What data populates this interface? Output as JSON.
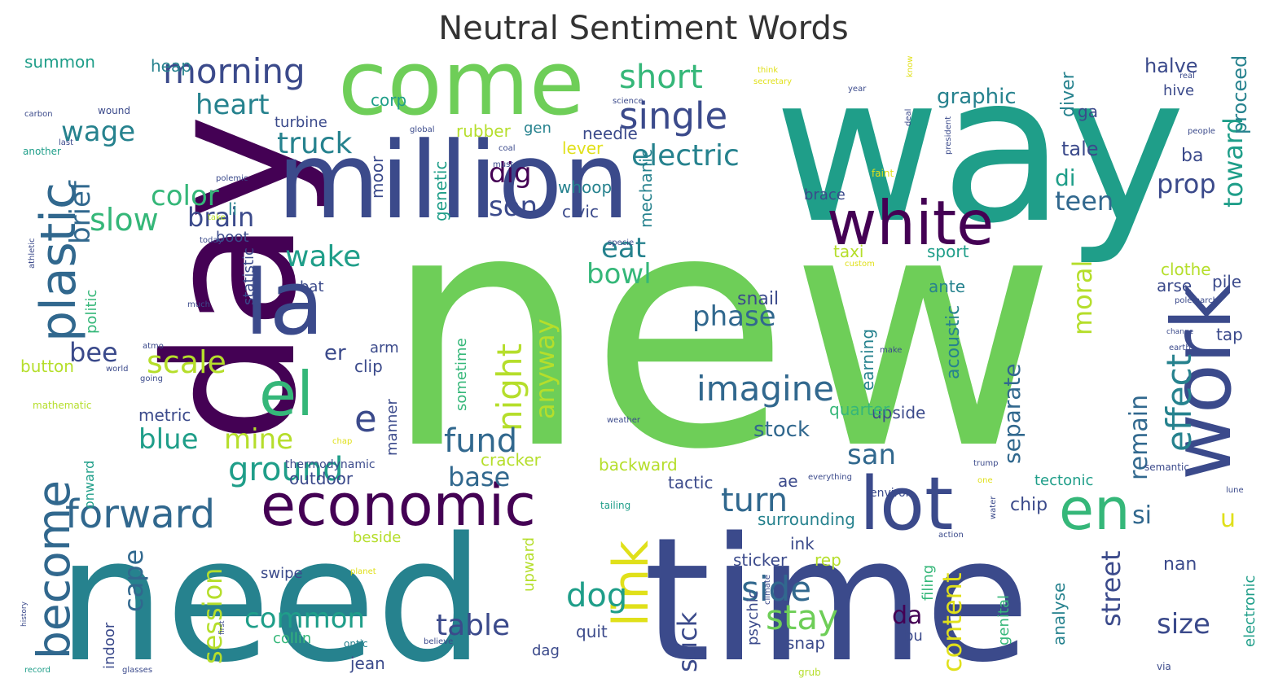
{
  "title": "Neutral Sentiment Words",
  "palette": {
    "dark_purple": "#440154",
    "indigo": "#3b4a8b",
    "blue": "#31688e",
    "teal": "#26828e",
    "sea_green": "#1f9e89",
    "green": "#35b779",
    "lime": "#6ece58",
    "light_lime": "#b5de2b",
    "yellow": "#e0e01a"
  },
  "words": [
    {
      "text": "new",
      "color": "lime",
      "rot": 0
    },
    {
      "text": "need",
      "color": "teal",
      "rot": 0
    },
    {
      "text": "time",
      "color": "indigo",
      "rot": 0
    },
    {
      "text": "way",
      "color": "sea_green",
      "rot": 0
    },
    {
      "text": "day",
      "color": "dark_purple",
      "rot": -90
    },
    {
      "text": "million",
      "color": "indigo",
      "rot": 0
    },
    {
      "text": "come",
      "color": "lime",
      "rot": 0
    },
    {
      "text": "work",
      "color": "indigo",
      "rot": -90
    },
    {
      "text": "la",
      "color": "indigo",
      "rot": 0
    },
    {
      "text": "white",
      "color": "dark_purple",
      "rot": 0
    },
    {
      "text": "economic",
      "color": "dark_purple",
      "rot": 0
    },
    {
      "text": "lot",
      "color": "indigo",
      "rot": 0
    },
    {
      "text": "plastic",
      "color": "blue",
      "rot": -90
    },
    {
      "text": "become",
      "color": "blue",
      "rot": -90
    },
    {
      "text": "link",
      "color": "yellow",
      "rot": -90
    },
    {
      "text": "el",
      "color": "green",
      "rot": 0
    },
    {
      "text": "en",
      "color": "green",
      "rot": 0
    },
    {
      "text": "single",
      "color": "indigo",
      "rot": 0
    },
    {
      "text": "imagine",
      "color": "blue",
      "rot": 0
    },
    {
      "text": "effect",
      "color": "teal",
      "rot": -90
    },
    {
      "text": "forward",
      "color": "blue",
      "rot": 0
    },
    {
      "text": "morning",
      "color": "indigo",
      "rot": 0
    },
    {
      "text": "short",
      "color": "green",
      "rot": 0
    },
    {
      "text": "night",
      "color": "light_lime",
      "rot": -90
    },
    {
      "text": "fund",
      "color": "blue",
      "rot": 0
    },
    {
      "text": "ground",
      "color": "sea_green",
      "rot": 0
    },
    {
      "text": "turn",
      "color": "blue",
      "rot": 0
    },
    {
      "text": "side",
      "color": "blue",
      "rot": 0
    },
    {
      "text": "stay",
      "color": "lime",
      "rot": 0
    },
    {
      "text": "electric",
      "color": "teal",
      "rot": 0
    },
    {
      "text": "e",
      "color": "indigo",
      "rot": 0
    },
    {
      "text": "scale",
      "color": "light_lime",
      "rot": 0
    },
    {
      "text": "slow",
      "color": "green",
      "rot": 0
    },
    {
      "text": "truck",
      "color": "teal",
      "rot": 0
    },
    {
      "text": "heart",
      "color": "teal",
      "rot": 0
    },
    {
      "text": "wage",
      "color": "teal",
      "rot": 0
    },
    {
      "text": "brief",
      "color": "blue",
      "rot": -90
    },
    {
      "text": "color",
      "color": "green",
      "rot": 0
    },
    {
      "text": "brain",
      "color": "indigo",
      "rot": 0
    },
    {
      "text": "wake",
      "color": "sea_green",
      "rot": 0
    },
    {
      "text": "eat",
      "color": "teal",
      "rot": 0
    },
    {
      "text": "bowl",
      "color": "green",
      "rot": 0
    },
    {
      "text": "dig",
      "color": "dark_purple",
      "rot": 0
    },
    {
      "text": "son",
      "color": "indigo",
      "rot": 0
    },
    {
      "text": "anyway",
      "color": "light_lime",
      "rot": -90
    },
    {
      "text": "phase",
      "color": "blue",
      "rot": 0
    },
    {
      "text": "moral",
      "color": "light_lime",
      "rot": -90
    },
    {
      "text": "toward",
      "color": "sea_green",
      "rot": -90
    },
    {
      "text": "teen",
      "color": "blue",
      "rot": 0
    },
    {
      "text": "prop",
      "color": "indigo",
      "rot": 0
    },
    {
      "text": "di",
      "color": "sea_green",
      "rot": 0
    },
    {
      "text": "u",
      "color": "yellow",
      "rot": 0
    },
    {
      "text": "si",
      "color": "blue",
      "rot": 0
    },
    {
      "text": "remain",
      "color": "blue",
      "rot": -90
    },
    {
      "text": "bee",
      "color": "indigo",
      "rot": 0
    },
    {
      "text": "blue",
      "color": "sea_green",
      "rot": 0
    },
    {
      "text": "mine",
      "color": "light_lime",
      "rot": 0
    },
    {
      "text": "base",
      "color": "blue",
      "rot": 0
    },
    {
      "text": "dog",
      "color": "sea_green",
      "rot": 0
    },
    {
      "text": "table",
      "color": "indigo",
      "rot": 0
    },
    {
      "text": "common",
      "color": "sea_green",
      "rot": 0
    },
    {
      "text": "session",
      "color": "light_lime",
      "rot": -90
    },
    {
      "text": "cape",
      "color": "blue",
      "rot": -90
    },
    {
      "text": "stick",
      "color": "indigo",
      "rot": -90
    },
    {
      "text": "da",
      "color": "dark_purple",
      "rot": 0
    },
    {
      "text": "content",
      "color": "yellow",
      "rot": -90
    },
    {
      "text": "street",
      "color": "indigo",
      "rot": -90
    },
    {
      "text": "size",
      "color": "indigo",
      "rot": 0
    },
    {
      "text": "san",
      "color": "blue",
      "rot": 0
    },
    {
      "text": "separate",
      "color": "blue",
      "rot": -90
    },
    {
      "text": "stock",
      "color": "blue",
      "rot": 0
    },
    {
      "text": "graphic",
      "color": "teal",
      "rot": 0
    },
    {
      "text": "halve",
      "color": "indigo",
      "rot": 0
    },
    {
      "text": "tale",
      "color": "indigo",
      "rot": 0
    },
    {
      "text": "ba",
      "color": "indigo",
      "rot": 0
    },
    {
      "text": "proceed",
      "color": "teal",
      "rot": -90
    },
    {
      "text": "diver",
      "color": "teal",
      "rot": -90
    },
    {
      "text": "ga",
      "color": "indigo",
      "rot": 0
    },
    {
      "text": "hive",
      "color": "indigo",
      "rot": 0
    },
    {
      "text": "pile",
      "color": "indigo",
      "rot": 0
    },
    {
      "text": "tap",
      "color": "indigo",
      "rot": 0
    },
    {
      "text": "arse",
      "color": "indigo",
      "rot": 0
    },
    {
      "text": "clothe",
      "color": "light_lime",
      "rot": 0
    },
    {
      "text": "sport",
      "color": "sea_green",
      "rot": 0
    },
    {
      "text": "taxi",
      "color": "light_lime",
      "rot": 0
    },
    {
      "text": "ante",
      "color": "teal",
      "rot": 0
    },
    {
      "text": "acoustic",
      "color": "teal",
      "rot": -90
    },
    {
      "text": "upside",
      "color": "indigo",
      "rot": 0
    },
    {
      "text": "quarter",
      "color": "green",
      "rot": 0
    },
    {
      "text": "earning",
      "color": "teal",
      "rot": -90
    },
    {
      "text": "snail",
      "color": "indigo",
      "rot": 0
    },
    {
      "text": "summon",
      "color": "sea_green",
      "rot": 0
    },
    {
      "text": "heap",
      "color": "teal",
      "rot": 0
    },
    {
      "text": "corp",
      "color": "sea_green",
      "rot": 0
    },
    {
      "text": "turbine",
      "color": "indigo",
      "rot": 0
    },
    {
      "text": "rubber",
      "color": "light_lime",
      "rot": 0
    },
    {
      "text": "gen",
      "color": "teal",
      "rot": 0
    },
    {
      "text": "needle",
      "color": "indigo",
      "rot": 0
    },
    {
      "text": "lever",
      "color": "yellow",
      "rot": 0
    },
    {
      "text": "genetic",
      "color": "sea_green",
      "rot": -90
    },
    {
      "text": "moor",
      "color": "indigo",
      "rot": -90
    },
    {
      "text": "whoop",
      "color": "teal",
      "rot": 0
    },
    {
      "text": "civic",
      "color": "indigo",
      "rot": 0
    },
    {
      "text": "mechanic",
      "color": "teal",
      "rot": -90
    },
    {
      "text": "brace",
      "color": "indigo",
      "rot": 0
    },
    {
      "text": "li",
      "color": "teal",
      "rot": 0
    },
    {
      "text": "boot",
      "color": "indigo",
      "rot": 0
    },
    {
      "text": "statistic",
      "color": "indigo",
      "rot": -90
    },
    {
      "text": "politic",
      "color": "green",
      "rot": -90
    },
    {
      "text": "bat",
      "color": "indigo",
      "rot": 0
    },
    {
      "text": "er",
      "color": "indigo",
      "rot": 0
    },
    {
      "text": "arm",
      "color": "indigo",
      "rot": 0
    },
    {
      "text": "clip",
      "color": "indigo",
      "rot": 0
    },
    {
      "text": "button",
      "color": "light_lime",
      "rot": 0
    },
    {
      "text": "metric",
      "color": "indigo",
      "rot": 0
    },
    {
      "text": "onward",
      "color": "sea_green",
      "rot": -90
    },
    {
      "text": "manner",
      "color": "indigo",
      "rot": -90
    },
    {
      "text": "sometime",
      "color": "green",
      "rot": -90
    },
    {
      "text": "cracker",
      "color": "light_lime",
      "rot": 0
    },
    {
      "text": "outdoor",
      "color": "indigo",
      "rot": 0
    },
    {
      "text": "thermodynamic",
      "color": "indigo",
      "rot": 0
    },
    {
      "text": "backward",
      "color": "light_lime",
      "rot": 0
    },
    {
      "text": "tactic",
      "color": "indigo",
      "rot": 0
    },
    {
      "text": "ae",
      "color": "indigo",
      "rot": 0
    },
    {
      "text": "environ",
      "color": "indigo",
      "rot": 0
    },
    {
      "text": "tectonic",
      "color": "sea_green",
      "rot": 0
    },
    {
      "text": "chip",
      "color": "indigo",
      "rot": 0
    },
    {
      "text": "surrounding",
      "color": "teal",
      "rot": 0
    },
    {
      "text": "ink",
      "color": "indigo",
      "rot": 0
    },
    {
      "text": "rep",
      "color": "light_lime",
      "rot": 0
    },
    {
      "text": "sticker",
      "color": "indigo",
      "rot": 0
    },
    {
      "text": "filing",
      "color": "green",
      "rot": -90
    },
    {
      "text": "psychic",
      "color": "indigo",
      "rot": -90
    },
    {
      "text": "genital",
      "color": "green",
      "rot": -90
    },
    {
      "text": "analyse",
      "color": "teal",
      "rot": -90
    },
    {
      "text": "nan",
      "color": "indigo",
      "rot": 0
    },
    {
      "text": "electronic",
      "color": "sea_green",
      "rot": -90
    },
    {
      "text": "snap",
      "color": "indigo",
      "rot": 0
    },
    {
      "text": "bu",
      "color": "indigo",
      "rot": 0
    },
    {
      "text": "quit",
      "color": "indigo",
      "rot": 0
    },
    {
      "text": "dag",
      "color": "indigo",
      "rot": 0
    },
    {
      "text": "jean",
      "color": "indigo",
      "rot": 0
    },
    {
      "text": "collin",
      "color": "green",
      "rot": 0
    },
    {
      "text": "indoor",
      "color": "indigo",
      "rot": -90
    },
    {
      "text": "swipe",
      "color": "indigo",
      "rot": 0
    },
    {
      "text": "beside",
      "color": "light_lime",
      "rot": 0
    },
    {
      "text": "upward",
      "color": "light_lime",
      "rot": -90
    },
    {
      "text": "tailing",
      "color": "sea_green",
      "rot": 0
    },
    {
      "text": "optic",
      "color": "teal",
      "rot": 0
    },
    {
      "text": "grub",
      "color": "light_lime",
      "rot": 0
    },
    {
      "text": "chap",
      "color": "yellow",
      "rot": 0
    },
    {
      "text": "custom",
      "color": "yellow",
      "rot": 0
    },
    {
      "text": "everything",
      "color": "indigo",
      "rot": 0
    },
    {
      "text": "wound",
      "color": "indigo",
      "rot": 0
    },
    {
      "text": "carbon",
      "color": "indigo",
      "rot": 0
    },
    {
      "text": "last",
      "color": "indigo",
      "rot": 0
    },
    {
      "text": "another",
      "color": "sea_green",
      "rot": 0
    },
    {
      "text": "polemic",
      "color": "indigo",
      "rot": 0
    },
    {
      "text": "athletic",
      "color": "indigo",
      "rot": -90
    },
    {
      "text": "atmo",
      "color": "indigo",
      "rot": 0
    },
    {
      "text": "much",
      "color": "indigo",
      "rot": 0
    },
    {
      "text": "world",
      "color": "indigo",
      "rot": 0
    },
    {
      "text": "mathematic",
      "color": "light_lime",
      "rot": 0
    },
    {
      "text": "history",
      "color": "indigo",
      "rot": -90
    },
    {
      "text": "first",
      "color": "indigo",
      "rot": -90
    },
    {
      "text": "record",
      "color": "sea_green",
      "rot": 0
    },
    {
      "text": "glasses",
      "color": "indigo",
      "rot": 0
    },
    {
      "text": "believe",
      "color": "indigo",
      "rot": 0
    },
    {
      "text": "weather",
      "color": "indigo",
      "rot": 0
    },
    {
      "text": "science",
      "color": "indigo",
      "rot": 0
    },
    {
      "text": "global",
      "color": "indigo",
      "rot": 0
    },
    {
      "text": "coal",
      "color": "indigo",
      "rot": 0
    },
    {
      "text": "must",
      "color": "indigo",
      "rot": 0
    },
    {
      "text": "take",
      "color": "light_lime",
      "rot": 0
    },
    {
      "text": "today",
      "color": "indigo",
      "rot": 0
    },
    {
      "text": "specie",
      "color": "indigo",
      "rot": 0
    },
    {
      "text": "think",
      "color": "yellow",
      "rot": 0
    },
    {
      "text": "secretary",
      "color": "yellow",
      "rot": 0
    },
    {
      "text": "year",
      "color": "indigo",
      "rot": 0
    },
    {
      "text": "know",
      "color": "yellow",
      "rot": -90
    },
    {
      "text": "deal",
      "color": "indigo",
      "rot": -90
    },
    {
      "text": "real",
      "color": "indigo",
      "rot": 0
    },
    {
      "text": "people",
      "color": "indigo",
      "rot": 0
    },
    {
      "text": "president",
      "color": "indigo",
      "rot": -90
    },
    {
      "text": "faint",
      "color": "yellow",
      "rot": 0
    },
    {
      "text": "polemarch",
      "color": "indigo",
      "rot": 0
    },
    {
      "text": "change",
      "color": "indigo",
      "rot": 0
    },
    {
      "text": "earth",
      "color": "indigo",
      "rot": 0
    },
    {
      "text": "make",
      "color": "indigo",
      "rot": 0
    },
    {
      "text": "trump",
      "color": "indigo",
      "rot": 0
    },
    {
      "text": "one",
      "color": "yellow",
      "rot": 0
    },
    {
      "text": "semantic",
      "color": "indigo",
      "rot": 0
    },
    {
      "text": "lune",
      "color": "indigo",
      "rot": 0
    },
    {
      "text": "water",
      "color": "indigo",
      "rot": -90
    },
    {
      "text": "action",
      "color": "indigo",
      "rot": 0
    },
    {
      "text": "climate",
      "color": "indigo",
      "rot": -90
    },
    {
      "text": "planet",
      "color": "yellow",
      "rot": 0
    },
    {
      "text": "going",
      "color": "indigo",
      "rot": 0
    },
    {
      "text": "via",
      "color": "indigo",
      "rot": 0
    }
  ]
}
